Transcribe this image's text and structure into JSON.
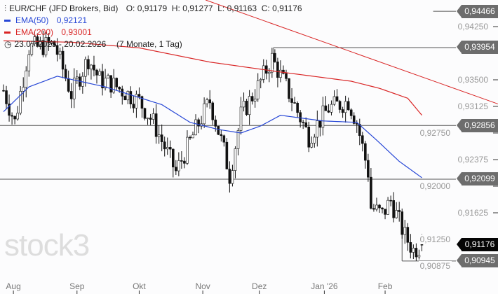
{
  "legend": {
    "symbol": "EUR/CHF (JFD Brokers, Bid)",
    "ohlc": "O: 0,91179  H: 0,91277  L: 0,91163  C: 0,91176",
    "ema50_label": "EMA(50)",
    "ema50_value": "0,92121",
    "ema200_label": "EMA(200)",
    "ema200_value": "0,93001",
    "range": "23.07.2025 - 20.02.2026",
    "duration": "(7 Monate, 1 Tag)"
  },
  "logo": "stock3",
  "colors": {
    "ema50": "#2747d6",
    "ema200": "#d92525",
    "tag": "#6d6d6d",
    "current": "#050505"
  },
  "chart_data": {
    "type": "candlestick",
    "title": "EUR/CHF",
    "ylim": [
      0.9075,
      0.9455
    ],
    "y_ticks": [
      "0,94250",
      "0,93500",
      "0,93125",
      "0,92750",
      "0,92375",
      "0,92000",
      "0,91625",
      "0,91250",
      "0,90875"
    ],
    "y_tick_values": [
      0.9425,
      0.935,
      0.93125,
      0.9275,
      0.92375,
      0.92,
      0.91625,
      0.9125,
      0.90875
    ],
    "x_labels": [
      "Aug",
      "Sep",
      "Okt",
      "Nov",
      "Dez",
      "Jan '26",
      "Feb"
    ],
    "x_label_days": [
      3.5,
      26,
      48,
      70.5,
      90.5,
      113.5,
      135
    ],
    "days": 149,
    "close_path": [
      [
        0,
        0.9335
      ],
      [
        4,
        0.929
      ],
      [
        9,
        0.9395
      ],
      [
        18,
        0.94
      ],
      [
        24,
        0.933
      ],
      [
        30,
        0.938
      ],
      [
        34,
        0.935
      ],
      [
        38,
        0.9345
      ],
      [
        48,
        0.932
      ],
      [
        53,
        0.929
      ],
      [
        61,
        0.922
      ],
      [
        68,
        0.928
      ],
      [
        73,
        0.932
      ],
      [
        78,
        0.925
      ],
      [
        80,
        0.9215
      ],
      [
        84,
        0.93
      ],
      [
        90,
        0.934
      ],
      [
        95,
        0.938
      ],
      [
        100,
        0.934
      ],
      [
        108,
        0.927
      ],
      [
        115,
        0.931
      ],
      [
        122,
        0.932
      ],
      [
        125,
        0.929
      ],
      [
        129,
        0.922
      ],
      [
        130,
        0.917
      ],
      [
        134,
        0.916
      ],
      [
        137,
        0.918
      ],
      [
        142,
        0.913
      ],
      [
        145,
        0.911
      ],
      [
        148,
        0.91176
      ]
    ],
    "ema50": [
      [
        0,
        0.9305
      ],
      [
        9,
        0.934
      ],
      [
        19,
        0.9355
      ],
      [
        36,
        0.934
      ],
      [
        56,
        0.9315
      ],
      [
        66,
        0.929
      ],
      [
        76,
        0.928
      ],
      [
        84,
        0.9275
      ],
      [
        91,
        0.9285
      ],
      [
        98,
        0.93
      ],
      [
        113,
        0.9292
      ],
      [
        125,
        0.929
      ],
      [
        132,
        0.9265
      ],
      [
        140,
        0.9235
      ],
      [
        148,
        0.9212
      ]
    ],
    "ema200": [
      [
        0,
        0.9405
      ],
      [
        24,
        0.9403
      ],
      [
        48,
        0.9395
      ],
      [
        73,
        0.9375
      ],
      [
        98,
        0.9361
      ],
      [
        123,
        0.9348
      ],
      [
        133,
        0.9338
      ],
      [
        143,
        0.9324
      ],
      [
        148,
        0.93001
      ]
    ],
    "trendline": [
      [
        71.5,
        0.94625
      ],
      [
        174.9,
        0.9316
      ]
    ],
    "levels": [
      {
        "label": "0,94466",
        "value": 0.94466,
        "from_day": 152
      },
      {
        "label": "0,93954",
        "value": 0.93954,
        "from_day": 95.5
      },
      {
        "label": "0,92856",
        "value": 0.92856,
        "from_day": -2
      },
      {
        "label": "0,92099",
        "value": 0.92099,
        "from_day": -2
      },
      {
        "label": "0,90945",
        "value": 0.90945,
        "from_day": 141
      }
    ],
    "current": {
      "label": "0,91176",
      "value": 0.91176
    }
  }
}
